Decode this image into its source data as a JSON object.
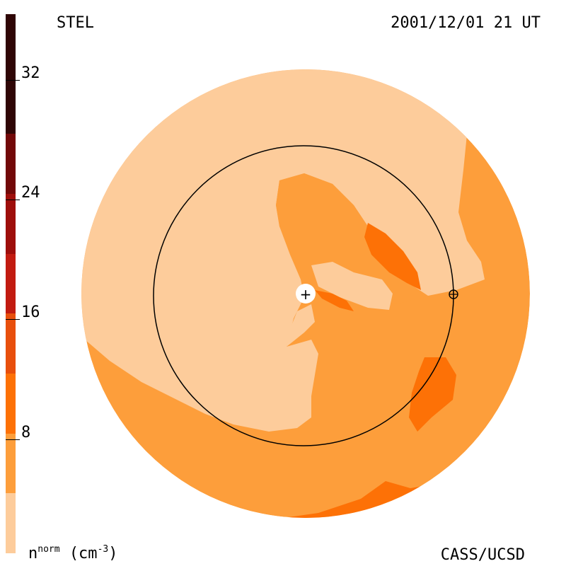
{
  "header": {
    "view_label": "STEL",
    "timestamp": "2001/12/01 21 UT"
  },
  "footer": {
    "credit": "CASS/UCSD",
    "units_base": "n",
    "units_sup": "norm",
    "units_open": "(cm",
    "units_exp": "-3",
    "units_close": ")"
  },
  "colorbar": {
    "ticks": [
      {
        "label": "32",
        "value": 32
      },
      {
        "label": "24",
        "value": 24
      },
      {
        "label": "16",
        "value": 16
      },
      {
        "label": "8",
        "value": 8
      }
    ],
    "levels": [
      {
        "from": 0,
        "to": 4,
        "color": "#fdcc9b"
      },
      {
        "from": 4,
        "to": 8,
        "color": "#fd9e3b"
      },
      {
        "from": 8,
        "to": 12,
        "color": "#fd7106"
      },
      {
        "from": 12,
        "to": 16,
        "color": "#e84f0c"
      },
      {
        "from": 16,
        "to": 20,
        "color": "#c21b10"
      },
      {
        "from": 20,
        "to": 24,
        "color": "#9e0e0b"
      },
      {
        "from": 24,
        "to": 28,
        "color": "#720808"
      },
      {
        "from": 28,
        "to": 36,
        "color": "#2f0606"
      }
    ],
    "range": [
      0,
      36
    ]
  },
  "colors": {
    "light": "#fdcc9b",
    "mid": "#fd9e3b",
    "dark": "#fd7106"
  },
  "markers": {
    "sun_symbol": "+",
    "earth_symbol": "⊕"
  }
}
